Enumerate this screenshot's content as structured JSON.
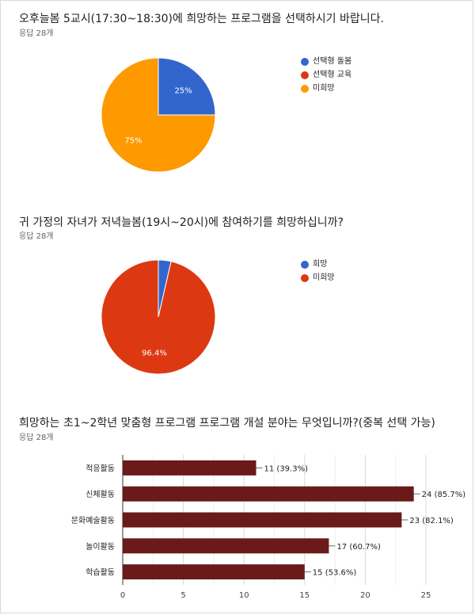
{
  "charts": [
    {
      "title": "오후늘봄 5교시(17:30~18:30)에 희망하는 프로그램을 선택하시기 바랍니다.",
      "count": "응답 28개"
    },
    {
      "title": "귀 가정의 자녀가 저녁늘봄(19시~20시)에 참여하기를 희망하십니까?",
      "count": "응답 28개"
    },
    {
      "title": "희망하는 초1~2학년 맞춤형 프로그램 프로그램 개설 분야는 무엇입니까?(중복 선택 가능)",
      "count": "응답 28개"
    }
  ],
  "chart_data": [
    {
      "type": "pie",
      "labels": [
        "선택형 돌봄",
        "선택형 교육",
        "미희망"
      ],
      "values": [
        25,
        0,
        75
      ],
      "slice_labels": [
        "25%",
        "",
        "75%"
      ],
      "colors": [
        "#3366cc",
        "#dc3912",
        "#ff9900"
      ],
      "legend": "right"
    },
    {
      "type": "pie",
      "labels": [
        "희망",
        "미희망"
      ],
      "values": [
        3.6,
        96.4
      ],
      "slice_labels": [
        "",
        "96.4%"
      ],
      "colors": [
        "#3366cc",
        "#dc3912"
      ],
      "legend": "right"
    },
    {
      "type": "bar",
      "orientation": "horizontal",
      "categories": [
        "적응활동",
        "신체활동",
        "문화예술활동",
        "놀이활동",
        "학습활동"
      ],
      "values": [
        11,
        24,
        23,
        17,
        15
      ],
      "data_labels": [
        "11 (39.3%)",
        "24 (85.7%)",
        "23 (82.1%)",
        "17 (60.7%)",
        "15 (53.6%)"
      ],
      "xlim": [
        0,
        25
      ],
      "xticks": [
        "0",
        "5",
        "10",
        "15",
        "20",
        "25"
      ],
      "grid": true,
      "color": "#6b1a1a"
    }
  ]
}
